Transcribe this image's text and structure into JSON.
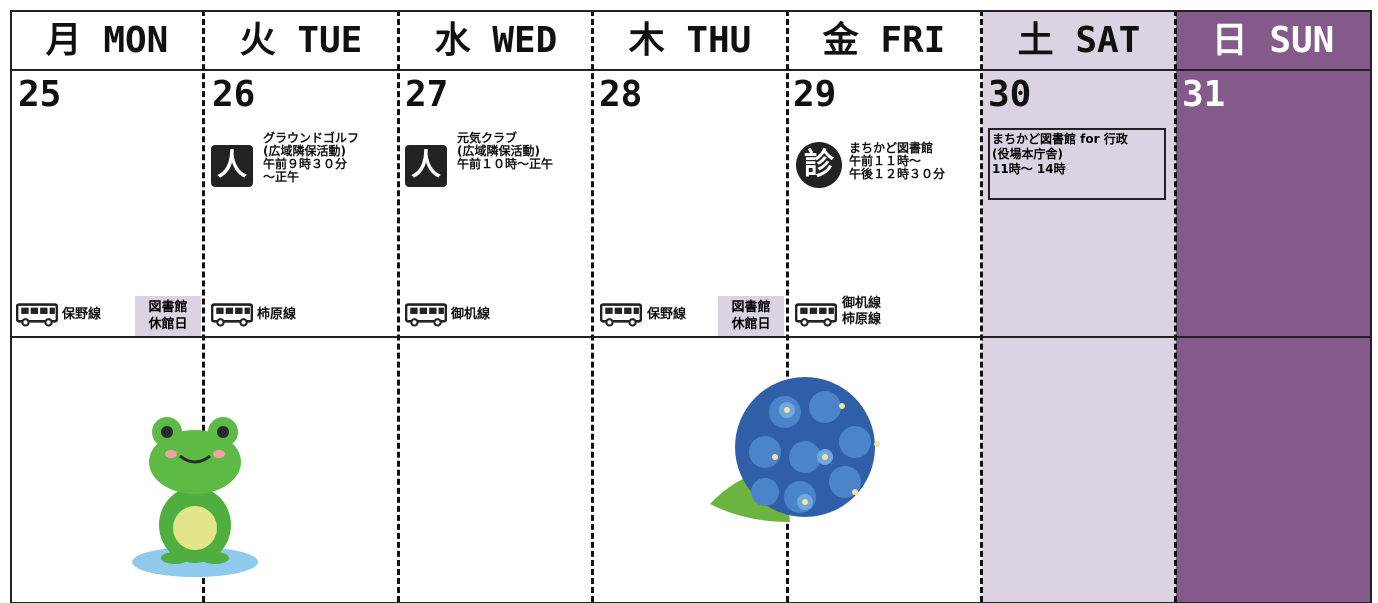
{
  "days": [
    {
      "header": "月 MON",
      "date": "25",
      "bus": [
        "保野線"
      ],
      "note": [
        "図書館",
        "休館日"
      ]
    },
    {
      "header": "火 TUE",
      "date": "26",
      "event": {
        "icon": "人",
        "lines": [
          "グラウンドゴルフ",
          "(広域隣保活動)",
          "午前９時３０分",
          "～正午"
        ]
      },
      "bus": [
        "柿原線"
      ]
    },
    {
      "header": "水 WED",
      "date": "27",
      "event": {
        "icon": "人",
        "lines": [
          "元気クラブ",
          "(広域隣保活動)",
          "午前１０時～正午"
        ]
      },
      "bus": [
        "御机線"
      ]
    },
    {
      "header": "木 THU",
      "date": "28",
      "bus": [
        "保野線"
      ],
      "note": [
        "図書館",
        "休館日"
      ]
    },
    {
      "header": "金 FRI",
      "date": "29",
      "event": {
        "icon": "診",
        "lines": [
          "まちかど図書館",
          "午前１１時～",
          "午後１２時３０分"
        ]
      },
      "bus": [
        "御机線",
        "柿原線"
      ]
    },
    {
      "header": "土 SAT",
      "date": "30",
      "event": {
        "lines": [
          "まちかど図書館 for 行政",
          "(役場本庁舎)",
          "11時～ 14時"
        ]
      }
    },
    {
      "header": "日 SUN",
      "date": "31"
    }
  ]
}
